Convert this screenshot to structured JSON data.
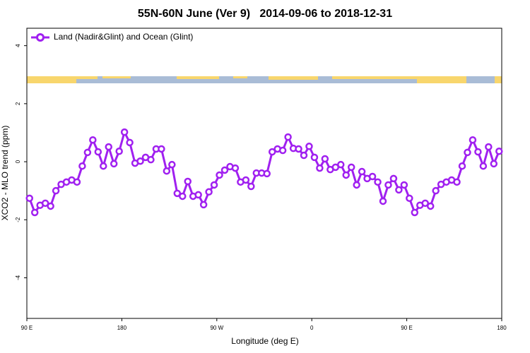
{
  "chart_data": {
    "type": "line",
    "title": "55N-60N June (Ver 9)   2014-09-06 to 2018-12-31",
    "x_label": "Longitude (deg E)",
    "y_label": "XCO2 - MLO trend (ppm)",
    "xlim": [
      90,
      540
    ],
    "xticks": [
      {
        "value": 90,
        "label": "90 E"
      },
      {
        "value": 180,
        "label": "180"
      },
      {
        "value": 270,
        "label": "90 W"
      },
      {
        "value": 360,
        "label": "0"
      },
      {
        "value": 450,
        "label": "90 E"
      },
      {
        "value": 540,
        "label": "180"
      }
    ],
    "ylim": [
      -5.4,
      4.6
    ],
    "yticks": [
      -4,
      -2,
      0,
      2,
      4
    ],
    "legend": "top-left",
    "x": [
      92.5,
      97.5,
      102.5,
      107.5,
      112.5,
      117.5,
      122.5,
      127.5,
      132.5,
      137.5,
      142.5,
      147.5,
      152.5,
      157.5,
      162.5,
      167.5,
      172.5,
      177.5,
      182.5,
      187.5,
      192.5,
      197.5,
      202.5,
      207.5,
      212.5,
      217.5,
      222.5,
      227.5,
      232.5,
      237.5,
      242.5,
      247.5,
      252.5,
      257.5,
      262.5,
      267.5,
      272.5,
      277.5,
      282.5,
      287.5,
      292.5,
      297.5,
      302.5,
      307.5,
      312.5,
      317.5,
      322.5,
      327.5,
      332.5,
      337.5,
      342.5,
      347.5,
      352.5,
      357.5,
      362.5,
      367.5,
      372.5,
      377.5,
      382.5,
      387.5,
      392.5,
      397.5,
      402.5,
      407.5,
      412.5,
      417.5,
      422.5,
      427.5,
      432.5,
      437.5,
      442.5,
      447.5,
      452.5,
      457.5,
      462.5,
      467.5,
      472.5,
      477.5,
      482.5,
      487.5,
      492.5,
      497.5,
      502.5,
      507.5,
      512.5,
      517.5,
      522.5,
      527.5,
      532.5,
      537.5
    ],
    "series": [
      {
        "name": "Land (Nadir&Glint) and Ocean (Glint)",
        "color": "#a020f0",
        "values": [
          -1.26,
          -1.75,
          -1.5,
          -1.43,
          -1.53,
          -1.0,
          -0.78,
          -0.7,
          -0.63,
          -0.7,
          -0.15,
          0.32,
          0.75,
          0.34,
          -0.15,
          0.51,
          -0.07,
          0.36,
          1.02,
          0.66,
          -0.05,
          0.02,
          0.15,
          0.07,
          0.44,
          0.44,
          -0.32,
          -0.1,
          -1.09,
          -1.19,
          -0.68,
          -1.19,
          -1.14,
          -1.48,
          -1.04,
          -0.8,
          -0.46,
          -0.29,
          -0.17,
          -0.22,
          -0.7,
          -0.63,
          -0.85,
          -0.39,
          -0.39,
          -0.41,
          0.34,
          0.44,
          0.39,
          0.85,
          0.46,
          0.44,
          0.22,
          0.53,
          0.15,
          -0.22,
          0.1,
          -0.27,
          -0.19,
          -0.1,
          -0.46,
          -0.19,
          -0.8,
          -0.34,
          -0.58,
          -0.51,
          -0.7,
          -1.36,
          -0.8,
          -0.58,
          -0.97,
          -0.8,
          -1.26,
          -1.75,
          -1.5,
          -1.43,
          -1.53,
          -1.0,
          -0.78,
          -0.7,
          -0.63,
          -0.7,
          -0.15,
          0.32,
          0.75,
          0.34,
          -0.15,
          0.51,
          -0.07,
          0.36
        ]
      }
    ]
  }
}
